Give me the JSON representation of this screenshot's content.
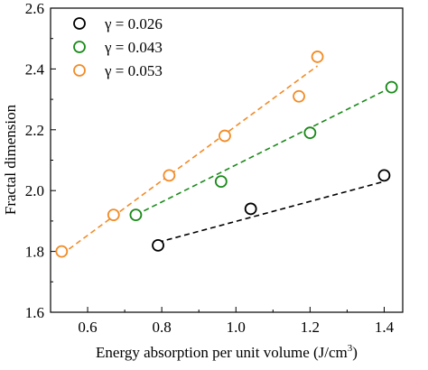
{
  "chart_data": {
    "type": "scatter",
    "xlabel": "Energy absorption per unit volume (J/cm",
    "xlabel_sup": "3",
    "xlabel_close": ")",
    "ylabel": "Fractal dimension",
    "xlim": [
      0.5,
      1.45
    ],
    "ylim": [
      1.6,
      2.6
    ],
    "xticks": [
      0.6,
      0.8,
      1.0,
      1.2,
      1.4
    ],
    "xtick_labels": [
      "0.6",
      "0.8",
      "1.0",
      "1.2",
      "1.4"
    ],
    "yticks": [
      1.6,
      1.8,
      2.0,
      2.2,
      2.4,
      2.6
    ],
    "ytick_labels": [
      "1.6",
      "1.8",
      "2.0",
      "2.2",
      "2.4",
      "2.6"
    ],
    "grid": false,
    "legend_position": "top-left",
    "series": [
      {
        "name": "γ = 0.026",
        "color": "#000000",
        "marker": "open-circle",
        "x": [
          0.79,
          1.04,
          1.4
        ],
        "y": [
          1.82,
          1.94,
          2.05
        ],
        "fit": {
          "x": [
            0.79,
            1.4
          ],
          "y": [
            1.83,
            2.03
          ]
        }
      },
      {
        "name": "γ = 0.043",
        "color": "#1a8a1a",
        "marker": "open-circle",
        "x": [
          0.73,
          0.96,
          1.2,
          1.42
        ],
        "y": [
          1.92,
          2.03,
          2.19,
          2.34
        ],
        "fit": {
          "x": [
            0.73,
            1.42
          ],
          "y": [
            1.92,
            2.34
          ]
        }
      },
      {
        "name": "γ = 0.053",
        "color": "#f28c28",
        "marker": "open-circle",
        "x": [
          0.53,
          0.67,
          0.82,
          0.97,
          1.17,
          1.22
        ],
        "y": [
          1.8,
          1.92,
          2.05,
          2.18,
          2.31,
          2.44
        ],
        "fit": {
          "x": [
            0.53,
            1.22
          ],
          "y": [
            1.79,
            2.41
          ]
        }
      }
    ]
  }
}
